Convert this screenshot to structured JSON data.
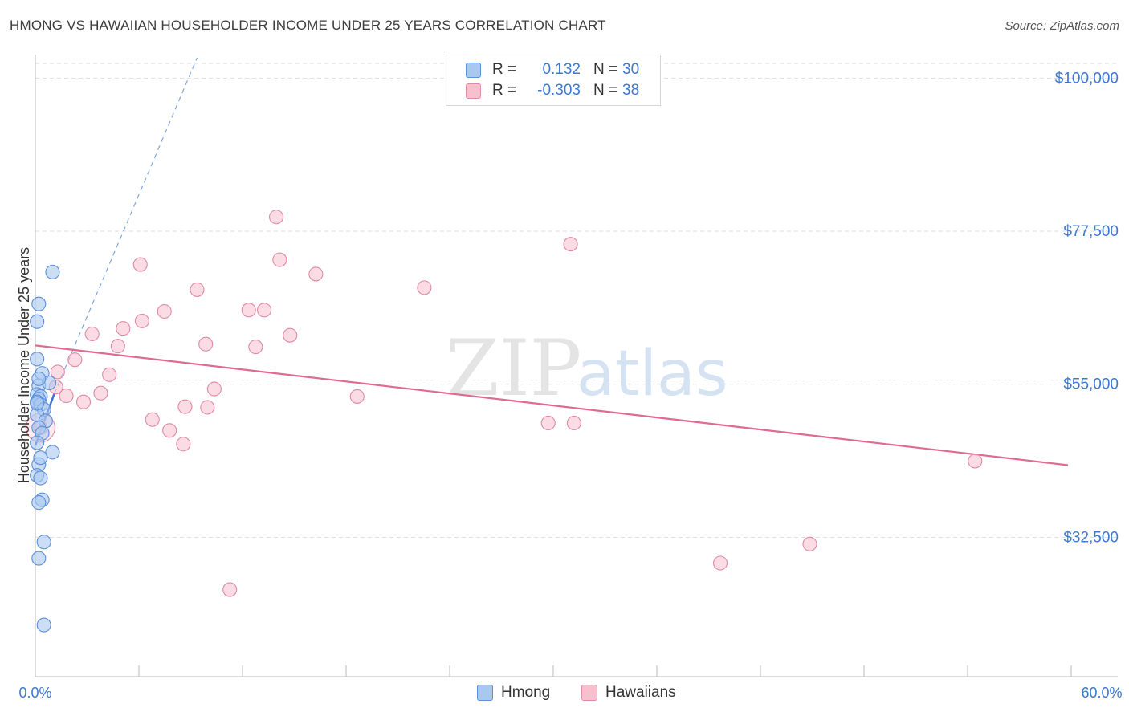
{
  "title": "HMONG VS HAWAIIAN HOUSEHOLDER INCOME UNDER 25 YEARS CORRELATION CHART",
  "source": "Source: ZipAtlas.com",
  "watermark": {
    "zip": "ZIP",
    "atlas": "atlas"
  },
  "colors": {
    "hmong_fill": "#a8c8f0",
    "hmong_stroke": "#5b8fd8",
    "hmong_line": "#3a6fd8",
    "hawaiian_fill": "#f8c0cf",
    "hawaiian_stroke": "#e08aa5",
    "hawaiian_line": "#e06a92",
    "tick_label": "#3b78d0",
    "grid": "#dddddd"
  },
  "legend": {
    "rows": [
      {
        "r_label": "R =",
        "r_value": "0.132",
        "n_label": "N =",
        "n_value": "30"
      },
      {
        "r_label": "R =",
        "r_value": "-0.303",
        "n_label": "N =",
        "n_value": "38"
      }
    ]
  },
  "bottom_legend": {
    "hmong": "Hmong",
    "hawaiians": "Hawaiians"
  },
  "chart_data": {
    "type": "scatter",
    "title": "HMONG VS HAWAIIAN HOUSEHOLDER INCOME UNDER 25 YEARS CORRELATION CHART",
    "xlabel": "",
    "ylabel": "Householder Income Under 25 years",
    "xlim": [
      0,
      60
    ],
    "ylim": [
      12000,
      103000
    ],
    "x_tick_labels": {
      "min": "0.0%",
      "max": "60.0%"
    },
    "y_ticks": [
      {
        "value": 32500,
        "label": "$32,500"
      },
      {
        "value": 55000,
        "label": "$55,000"
      },
      {
        "value": 77500,
        "label": "$77,500"
      },
      {
        "value": 100000,
        "label": "$100,000"
      }
    ],
    "grid": true,
    "series": [
      {
        "name": "Hmong",
        "r": 0.132,
        "n": 30,
        "points": [
          [
            0.2,
            54800
          ],
          [
            0.4,
            56600
          ],
          [
            0.8,
            55200
          ],
          [
            0.1,
            53500
          ],
          [
            0.3,
            53200
          ],
          [
            0.2,
            52800
          ],
          [
            0.1,
            52400
          ],
          [
            0.3,
            52000
          ],
          [
            0.5,
            51300
          ],
          [
            0.1,
            50500
          ],
          [
            0.6,
            49600
          ],
          [
            0.2,
            48600
          ],
          [
            0.4,
            47800
          ],
          [
            0.1,
            46400
          ],
          [
            1.0,
            45000
          ],
          [
            0.2,
            43200
          ],
          [
            0.1,
            41600
          ],
          [
            0.3,
            41200
          ],
          [
            0.4,
            38000
          ],
          [
            0.2,
            37600
          ],
          [
            0.5,
            31800
          ],
          [
            0.2,
            29400
          ],
          [
            0.5,
            19600
          ],
          [
            1.0,
            71500
          ],
          [
            0.2,
            66800
          ],
          [
            0.1,
            64200
          ],
          [
            0.1,
            58700
          ],
          [
            0.2,
            55800
          ],
          [
            0.3,
            44200
          ],
          [
            0.1,
            52200
          ]
        ],
        "trend_solid": {
          "x": [
            0.0,
            1.1
          ],
          "y": [
            46000,
            53600
          ]
        },
        "trend_dashed": {
          "x": [
            1.1,
            9.4
          ],
          "y": [
            53600,
            103000
          ]
        }
      },
      {
        "name": "Hawaiians",
        "r": -0.303,
        "n": 38,
        "points": [
          [
            0.3,
            48600
          ],
          [
            1.2,
            54600
          ],
          [
            1.3,
            56800
          ],
          [
            1.8,
            53300
          ],
          [
            2.3,
            58600
          ],
          [
            2.8,
            52400
          ],
          [
            3.3,
            62400
          ],
          [
            3.8,
            53700
          ],
          [
            4.3,
            56400
          ],
          [
            4.8,
            60600
          ],
          [
            5.1,
            63200
          ],
          [
            6.1,
            72600
          ],
          [
            6.2,
            64300
          ],
          [
            6.8,
            49800
          ],
          [
            7.5,
            65700
          ],
          [
            7.8,
            48200
          ],
          [
            8.6,
            46200
          ],
          [
            8.7,
            51700
          ],
          [
            9.4,
            68900
          ],
          [
            9.9,
            60900
          ],
          [
            10.0,
            51600
          ],
          [
            10.4,
            54300
          ],
          [
            11.3,
            24800
          ],
          [
            12.4,
            65900
          ],
          [
            12.8,
            60500
          ],
          [
            13.3,
            65900
          ],
          [
            14.0,
            79600
          ],
          [
            14.2,
            73300
          ],
          [
            14.8,
            62200
          ],
          [
            16.3,
            71200
          ],
          [
            18.7,
            53200
          ],
          [
            22.6,
            69200
          ],
          [
            29.8,
            49300
          ],
          [
            31.1,
            75600
          ],
          [
            31.3,
            49300
          ],
          [
            39.8,
            28700
          ],
          [
            45.0,
            31500
          ],
          [
            54.6,
            43700
          ]
        ],
        "trend": {
          "x": [
            0.0,
            60.0
          ],
          "y": [
            60700,
            43100
          ]
        }
      }
    ]
  }
}
